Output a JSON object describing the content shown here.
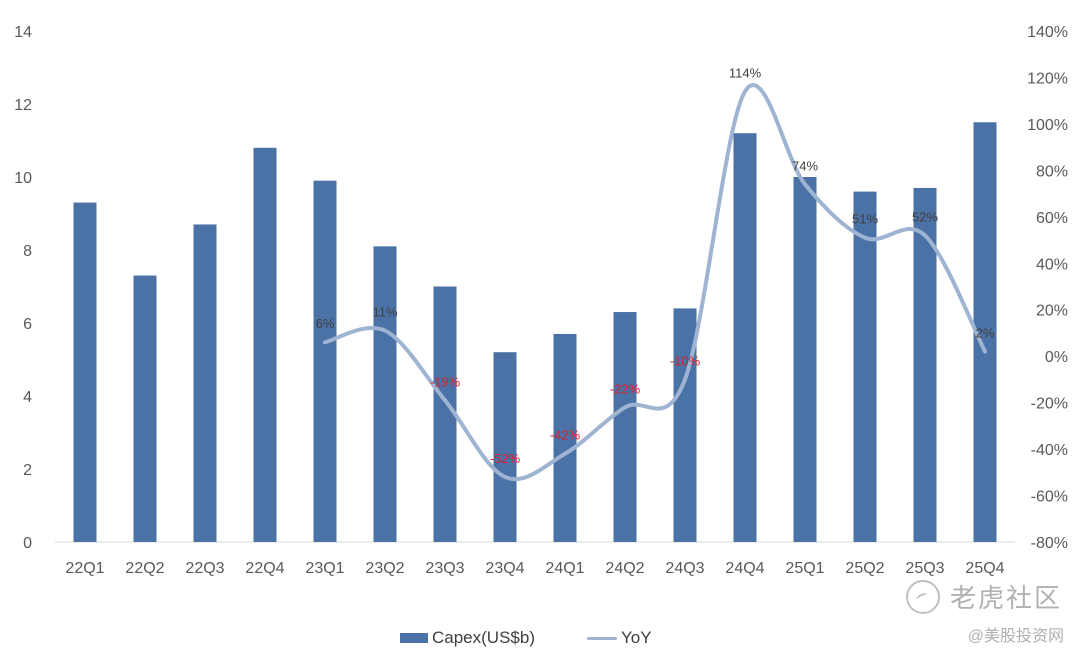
{
  "chart_data": {
    "type": "bar",
    "categories": [
      "22Q1",
      "22Q2",
      "22Q3",
      "22Q4",
      "23Q1",
      "23Q2",
      "23Q3",
      "23Q4",
      "24Q1",
      "24Q2",
      "24Q3",
      "24Q4",
      "25Q1",
      "25Q2",
      "25Q3",
      "25Q4"
    ],
    "series": [
      {
        "name": "Capex(US$b)",
        "type": "bar",
        "axis": "left",
        "color": "#4a72a6",
        "values": [
          9.3,
          7.3,
          8.7,
          10.8,
          9.9,
          8.1,
          7.0,
          5.2,
          5.7,
          6.3,
          6.4,
          11.2,
          10.0,
          9.6,
          9.7,
          11.5
        ]
      },
      {
        "name": "YoY",
        "type": "line",
        "axis": "right",
        "color": "#9fb3d3",
        "values": [
          null,
          null,
          null,
          null,
          6,
          11,
          -19,
          -52,
          -42,
          -22,
          -10,
          114,
          74,
          51,
          52,
          2
        ],
        "labels": [
          "",
          "",
          "",
          "",
          "6%",
          "11%",
          "-19%",
          "-52%",
          "-42%",
          "-22%",
          "-10%",
          "114%",
          "74%",
          "51%",
          "52%",
          "2%"
        ]
      }
    ],
    "y_left": {
      "ylim": [
        0,
        14
      ],
      "ticks": [
        "0",
        "2",
        "4",
        "6",
        "8",
        "10",
        "12",
        "14"
      ]
    },
    "y_right": {
      "ylim": [
        -80,
        140
      ],
      "ticks": [
        "-80%",
        "-60%",
        "-40%",
        "-20%",
        "0%",
        "20%",
        "40%",
        "60%",
        "80%",
        "100%",
        "120%",
        "140%"
      ]
    },
    "label_colors": {
      "positive": "#404040",
      "negative": "#e0202a"
    },
    "grid": false,
    "legend_position": "bottom"
  },
  "legend": {
    "bar_label": "Capex(US$b)",
    "line_label": "YoY"
  },
  "watermark": {
    "brand": "老虎社区",
    "handle": "@美股投资网"
  }
}
